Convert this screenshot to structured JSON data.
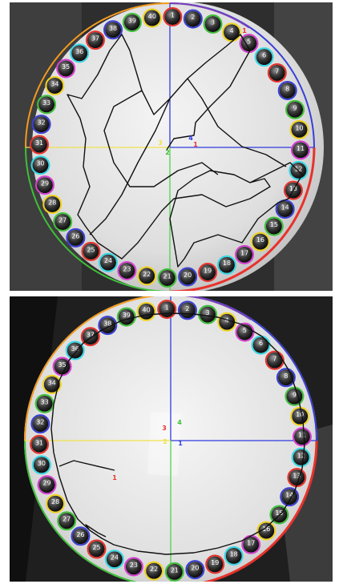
{
  "figure": {
    "panels": [
      {
        "id": "top",
        "holes": [
          "1",
          "2",
          "3",
          "4",
          "5",
          "6",
          "7",
          "8",
          "9",
          "10",
          "11",
          "12",
          "13",
          "14",
          "15",
          "16",
          "17",
          "18",
          "19",
          "20",
          "21",
          "22",
          "23",
          "24",
          "25",
          "26",
          "27",
          "28",
          "29",
          "30",
          "31",
          "32",
          "33",
          "34",
          "35",
          "36",
          "37",
          "38",
          "39",
          "40"
        ],
        "quadrant_labels": [
          "1",
          "2",
          "3",
          "4"
        ],
        "target_label": "1"
      },
      {
        "id": "bottom",
        "holes": [
          "1",
          "2",
          "3",
          "4",
          "5",
          "6",
          "7",
          "8",
          "9",
          "10",
          "11",
          "12",
          "13",
          "14",
          "15",
          "16",
          "17",
          "18",
          "19",
          "20",
          "21",
          "22",
          "23",
          "24",
          "25",
          "26",
          "27",
          "28",
          "29",
          "30",
          "31",
          "32",
          "33",
          "34",
          "35",
          "36",
          "37",
          "38",
          "39",
          "40"
        ],
        "quadrant_labels": [
          "3",
          "4",
          "2",
          "1"
        ],
        "target_label": "1"
      }
    ],
    "colors": {
      "ring_red": "#e8322c",
      "ring_blue": "#3a3fd6",
      "ring_green": "#3fbf3a",
      "ring_yellow": "#f0d21e",
      "ring_magenta": "#d63fd1",
      "ring_cyan": "#35d7e6",
      "axis_blue": "#2f3be0",
      "axis_yellow": "#f1e24a",
      "axis_green": "#4fd34b",
      "path_black": "#111111",
      "rim_orange": "#f29a1e",
      "rim_purple": "#7a3fb6"
    }
  }
}
